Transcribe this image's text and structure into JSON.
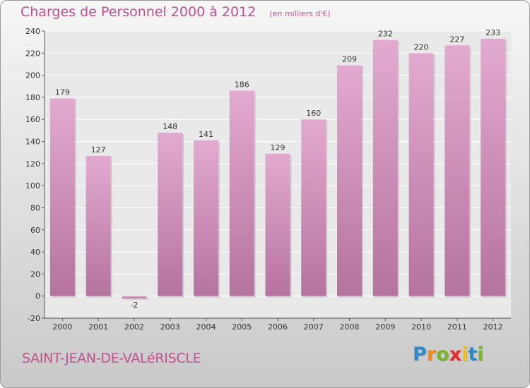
{
  "chart_data": {
    "type": "bar",
    "title": "Charges de Personnel 2000 à 2012",
    "subtitle": "(en milliers d'€)",
    "categories": [
      "2000",
      "2001",
      "2002",
      "2003",
      "2004",
      "2005",
      "2006",
      "2007",
      "2008",
      "2009",
      "2010",
      "2011",
      "2012"
    ],
    "values": [
      179,
      127,
      -2,
      148,
      141,
      186,
      129,
      160,
      209,
      232,
      220,
      227,
      233
    ],
    "value_labels": [
      "179",
      "127",
      "-2",
      "148",
      "141",
      "186",
      "129",
      "160",
      "209",
      "232",
      "220",
      "227",
      "233"
    ],
    "ylim": [
      -20,
      240
    ],
    "yticks": [
      -20,
      0,
      20,
      40,
      60,
      80,
      100,
      120,
      140,
      160,
      180,
      200,
      220,
      240
    ],
    "ytick_labels": [
      "-20",
      "0",
      "20",
      "40",
      "60",
      "80",
      "100",
      "120",
      "140",
      "160",
      "180",
      "200",
      "220",
      "240"
    ],
    "grid": true,
    "bar_color": "#d9a0c4",
    "bar_color_dark": "#b2709c"
  },
  "footer": {
    "commune": "SAINT-JEAN-DE-VALéRISCLE"
  },
  "brand": {
    "letters": [
      "P",
      "r",
      "o",
      "x",
      "i",
      "t",
      "i"
    ],
    "colors": [
      "#2e8bc9",
      "#f08a1e",
      "#79b62c",
      "#e52b2b",
      "#f4c316",
      "#2e8bc9",
      "#79b62c"
    ]
  },
  "colors": {
    "accent": "#c0508e",
    "plot_background": "#e9e9e9",
    "grid": "#ffffff"
  }
}
